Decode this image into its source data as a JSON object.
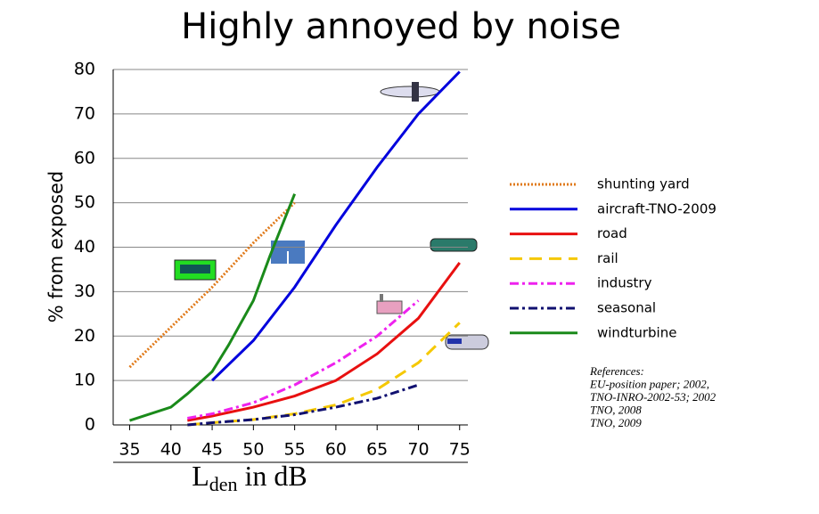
{
  "chart_data": {
    "type": "line",
    "title": "Highly annoyed by noise",
    "ylabel": "% from exposed",
    "xlabel": [
      "L",
      "den",
      " in dB"
    ],
    "xlim": [
      33,
      76
    ],
    "xticks": [
      35,
      40,
      45,
      50,
      55,
      60,
      65,
      70,
      75
    ],
    "ylim": [
      0,
      80
    ],
    "yticks": [
      0,
      10,
      20,
      30,
      40,
      50,
      60,
      70,
      80
    ],
    "grid": true,
    "legend": "right",
    "series": [
      {
        "name": "shunting yard",
        "color": "#e07a1a",
        "linestyle": "dotted",
        "x": [
          35,
          40,
          45,
          50,
          55
        ],
        "values": [
          13,
          22,
          31,
          41,
          50
        ]
      },
      {
        "name": "aircraft-TNO-2009",
        "color": "#0000dd",
        "linestyle": "solid",
        "x": [
          45,
          50,
          55,
          60,
          65,
          70,
          75
        ],
        "values": [
          10,
          19,
          31,
          45,
          58,
          70,
          79.5
        ]
      },
      {
        "name": "road",
        "color": "#e81010",
        "linestyle": "solid",
        "x": [
          42,
          45,
          50,
          55,
          60,
          65,
          70,
          75
        ],
        "values": [
          1,
          2,
          4,
          6.5,
          10,
          16,
          24,
          36.5
        ]
      },
      {
        "name": "rail",
        "color": "#f5c800",
        "linestyle": "dashed",
        "x": [
          42,
          45,
          50,
          55,
          60,
          65,
          70,
          75
        ],
        "values": [
          0,
          0.5,
          1.2,
          2.5,
          4.5,
          8,
          14,
          23
        ]
      },
      {
        "name": "industry",
        "color": "#ee22ee",
        "linestyle": "dashdot",
        "x": [
          42,
          45,
          50,
          55,
          60,
          65,
          70
        ],
        "values": [
          1.5,
          2.5,
          5,
          9,
          14,
          20,
          28
        ]
      },
      {
        "name": "seasonal",
        "color": "#101070",
        "linestyle": "dashdot",
        "x": [
          42,
          45,
          50,
          55,
          60,
          65,
          70
        ],
        "values": [
          0,
          0.5,
          1.2,
          2.3,
          4,
          6,
          9
        ]
      },
      {
        "name": "windturbine",
        "color": "#1a8a1a",
        "linestyle": "solid",
        "x": [
          35,
          40,
          42,
          45,
          47,
          50,
          52,
          55
        ],
        "values": [
          1,
          4,
          7,
          12,
          18,
          28,
          38,
          52
        ]
      }
    ],
    "references": [
      "References:",
      "EU-position paper; 2002,",
      "TNO-INRO-2002-53; 2002",
      "TNO, 2008",
      "TNO, 2009"
    ]
  }
}
